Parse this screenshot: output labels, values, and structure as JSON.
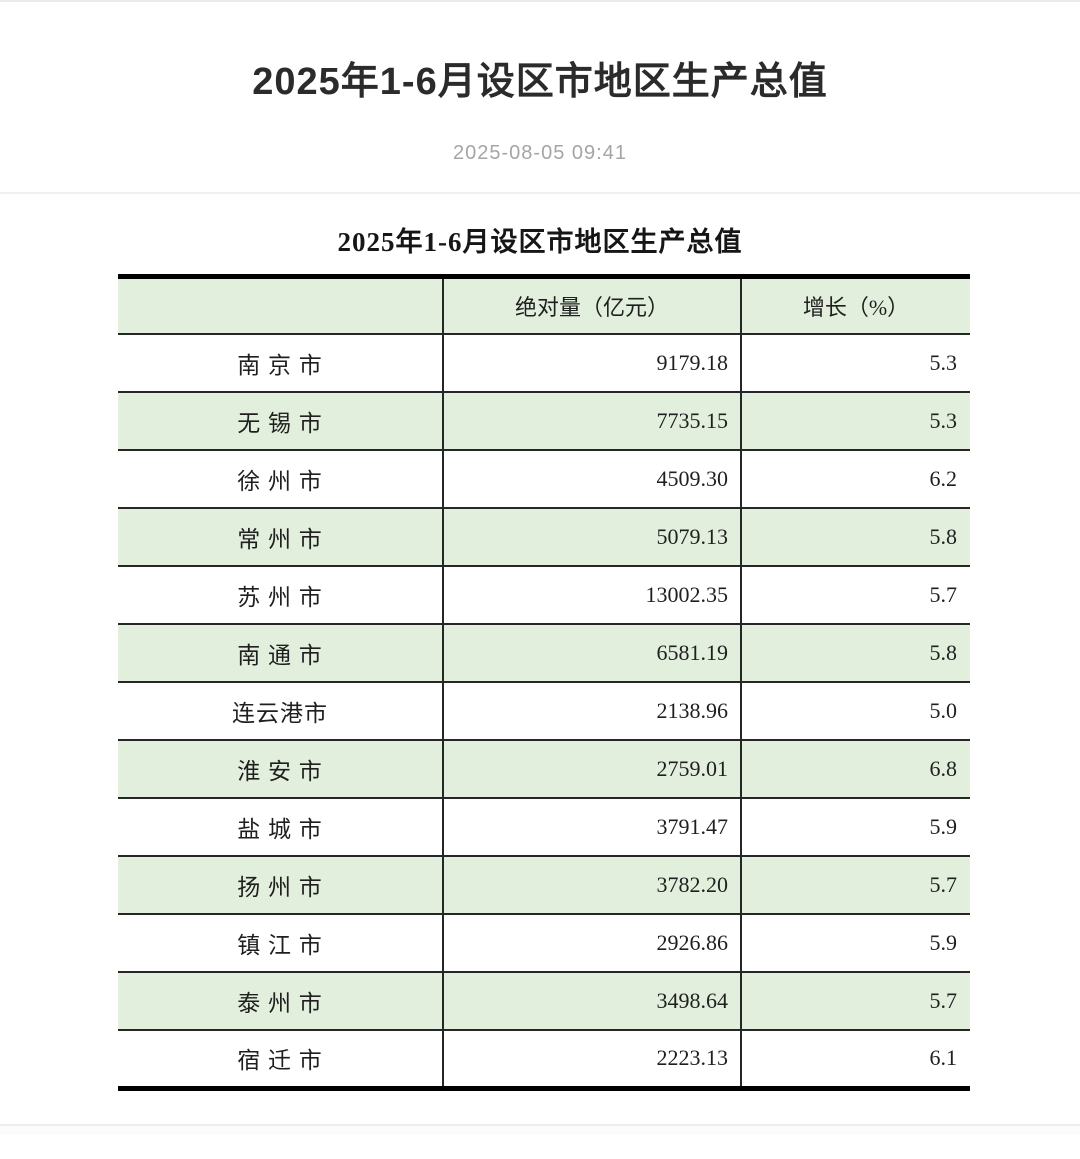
{
  "page": {
    "title": "2025年1-6月设区市地区生产总值",
    "date": "2025-08-05 09:41"
  },
  "article": {
    "table_title": "2025年1-6月设区市地区生产总值",
    "table": {
      "columns": [
        "",
        "绝对量（亿元）",
        "增长（%）"
      ],
      "rows": [
        {
          "city": "南 京 市",
          "value": "9179.18",
          "growth": "5.3"
        },
        {
          "city": "无 锡 市",
          "value": "7735.15",
          "growth": "5.3"
        },
        {
          "city": "徐 州 市",
          "value": "4509.30",
          "growth": "6.2"
        },
        {
          "city": "常 州 市",
          "value": "5079.13",
          "growth": "5.8"
        },
        {
          "city": "苏 州 市",
          "value": "13002.35",
          "growth": "5.7"
        },
        {
          "city": "南 通 市",
          "value": "6581.19",
          "growth": "5.8"
        },
        {
          "city": "连云港市",
          "value": "2138.96",
          "growth": "5.0"
        },
        {
          "city": "淮 安 市",
          "value": "2759.01",
          "growth": "6.8"
        },
        {
          "city": "盐 城 市",
          "value": "3791.47",
          "growth": "5.9"
        },
        {
          "city": "扬 州 市",
          "value": "3782.20",
          "growth": "5.7"
        },
        {
          "city": "镇 江 市",
          "value": "2926.86",
          "growth": "5.9"
        },
        {
          "city": "泰 州 市",
          "value": "3498.64",
          "growth": "5.7"
        },
        {
          "city": "宿 迁 市",
          "value": "2223.13",
          "growth": "6.1"
        }
      ]
    }
  },
  "colors": {
    "row_stripe_green": "#e3efdd",
    "table_rule_dark": "#262626",
    "table_border_thick": "#000000",
    "date_gray": "#a5a5a5",
    "divider_gray": "#f0f0f0"
  }
}
